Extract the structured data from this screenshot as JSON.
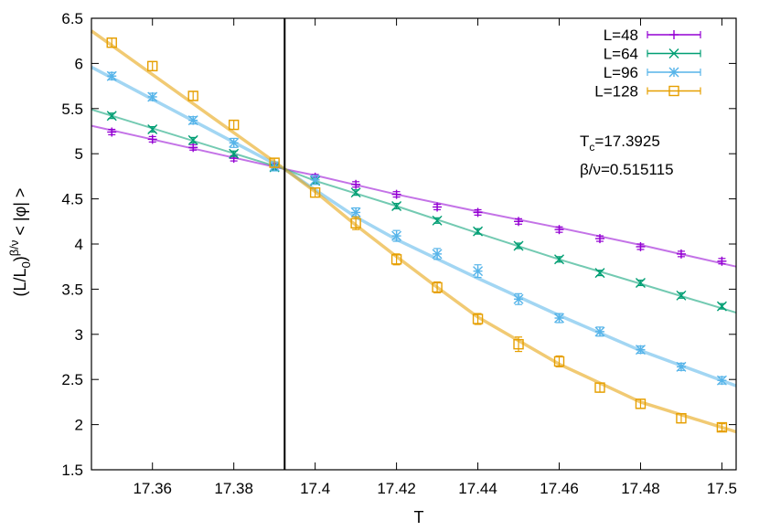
{
  "chart_data": {
    "type": "line",
    "xlabel": "T",
    "ylabel_parts": {
      "open": "(L/L",
      "sub": "0",
      "close": ")",
      "exp": "β/ν",
      "rest": " < |φ| >"
    },
    "xlim": [
      17.345,
      17.5035
    ],
    "ylim": [
      1.5,
      6.5
    ],
    "xticks": [
      17.36,
      17.38,
      17.4,
      17.42,
      17.44,
      17.46,
      17.48,
      17.5
    ],
    "xtick_labels": [
      "17.36",
      "17.38",
      "17.4",
      "17.42",
      "17.44",
      "17.46",
      "17.48",
      "17.5"
    ],
    "yticks": [
      1.5,
      2,
      2.5,
      3,
      3.5,
      4,
      4.5,
      5,
      5.5,
      6,
      6.5
    ],
    "ytick_labels": [
      "1.5",
      "2",
      "2.5",
      "3",
      "3.5",
      "4",
      "4.5",
      "5",
      "5.5",
      "6",
      "6.5"
    ],
    "vline_x": 17.3925,
    "annotations": {
      "tc_base": "T",
      "tc_sub": "c",
      "tc_value": "=17.3925",
      "beta_nu": "β/ν=0.515115"
    },
    "series": [
      {
        "name": "L=48",
        "marker": "plus",
        "color": "#9400d3",
        "x": [
          17.35,
          17.36,
          17.37,
          17.38,
          17.39,
          17.4,
          17.41,
          17.42,
          17.43,
          17.44,
          17.45,
          17.46,
          17.47,
          17.48,
          17.49,
          17.5
        ],
        "y": [
          5.24,
          5.16,
          5.07,
          4.95,
          4.86,
          4.74,
          4.66,
          4.55,
          4.41,
          4.35,
          4.25,
          4.16,
          4.06,
          3.97,
          3.89,
          3.81
        ],
        "err": [
          0.03,
          0.03,
          0.03,
          0.03,
          0.03,
          0.03,
          0.03,
          0.03,
          0.03,
          0.03,
          0.03,
          0.03,
          0.03,
          0.03,
          0.03,
          0.03
        ],
        "fit_x": [
          17.345,
          17.3925,
          17.4,
          17.42,
          17.44,
          17.46,
          17.48,
          17.5035
        ],
        "fit_y": [
          5.31,
          4.83,
          4.76,
          4.55,
          4.36,
          4.18,
          3.99,
          3.75
        ]
      },
      {
        "name": "L=64",
        "marker": "cross",
        "color": "#009e73",
        "x": [
          17.35,
          17.36,
          17.37,
          17.38,
          17.39,
          17.4,
          17.41,
          17.42,
          17.43,
          17.44,
          17.45,
          17.46,
          17.47,
          17.48,
          17.49,
          17.5
        ],
        "y": [
          5.42,
          5.27,
          5.15,
          5.0,
          4.85,
          4.7,
          4.57,
          4.42,
          4.26,
          4.14,
          3.98,
          3.83,
          3.68,
          3.57,
          3.43,
          3.31
        ],
        "err": [
          0.03,
          0.03,
          0.03,
          0.03,
          0.03,
          0.03,
          0.03,
          0.03,
          0.03,
          0.03,
          0.03,
          0.03,
          0.03,
          0.03,
          0.03,
          0.03
        ],
        "fit_x": [
          17.345,
          17.3925,
          17.4,
          17.42,
          17.44,
          17.46,
          17.48,
          17.5035
        ],
        "fit_y": [
          5.49,
          4.83,
          4.7,
          4.42,
          4.12,
          3.83,
          3.56,
          3.24
        ]
      },
      {
        "name": "L=96",
        "marker": "star",
        "color": "#56b4e9",
        "x": [
          17.35,
          17.36,
          17.37,
          17.38,
          17.39,
          17.4,
          17.41,
          17.42,
          17.43,
          17.44,
          17.45,
          17.46,
          17.47,
          17.48,
          17.49,
          17.5
        ],
        "y": [
          5.86,
          5.63,
          5.37,
          5.12,
          4.86,
          4.71,
          4.35,
          4.09,
          3.89,
          3.7,
          3.39,
          3.18,
          3.03,
          2.83,
          2.64,
          2.49
        ],
        "err": [
          0.04,
          0.04,
          0.04,
          0.05,
          0.05,
          0.05,
          0.05,
          0.06,
          0.06,
          0.07,
          0.06,
          0.05,
          0.05,
          0.04,
          0.04,
          0.04
        ],
        "fit_x": [
          17.345,
          17.3925,
          17.4,
          17.41,
          17.42,
          17.44,
          17.46,
          17.48,
          17.5035
        ],
        "fit_y": [
          5.96,
          4.83,
          4.6,
          4.3,
          4.05,
          3.62,
          3.21,
          2.82,
          2.43
        ]
      },
      {
        "name": "L=128",
        "marker": "square",
        "color": "#e69f00",
        "x": [
          17.35,
          17.36,
          17.37,
          17.38,
          17.39,
          17.4,
          17.41,
          17.42,
          17.43,
          17.44,
          17.45,
          17.46,
          17.47,
          17.48,
          17.49,
          17.5
        ],
        "y": [
          6.23,
          5.97,
          5.64,
          5.32,
          4.9,
          4.57,
          4.23,
          3.83,
          3.52,
          3.17,
          2.89,
          2.7,
          2.41,
          2.23,
          2.07,
          1.97
        ],
        "err": [
          0.05,
          0.05,
          0.05,
          0.05,
          0.05,
          0.05,
          0.07,
          0.06,
          0.06,
          0.06,
          0.08,
          0.06,
          0.05,
          0.05,
          0.05,
          0.04
        ],
        "fit_x": [
          17.345,
          17.3925,
          17.4,
          17.41,
          17.42,
          17.43,
          17.44,
          17.46,
          17.48,
          17.5035
        ],
        "fit_y": [
          6.36,
          4.83,
          4.58,
          4.21,
          3.86,
          3.52,
          3.19,
          2.67,
          2.25,
          1.92
        ]
      }
    ]
  }
}
